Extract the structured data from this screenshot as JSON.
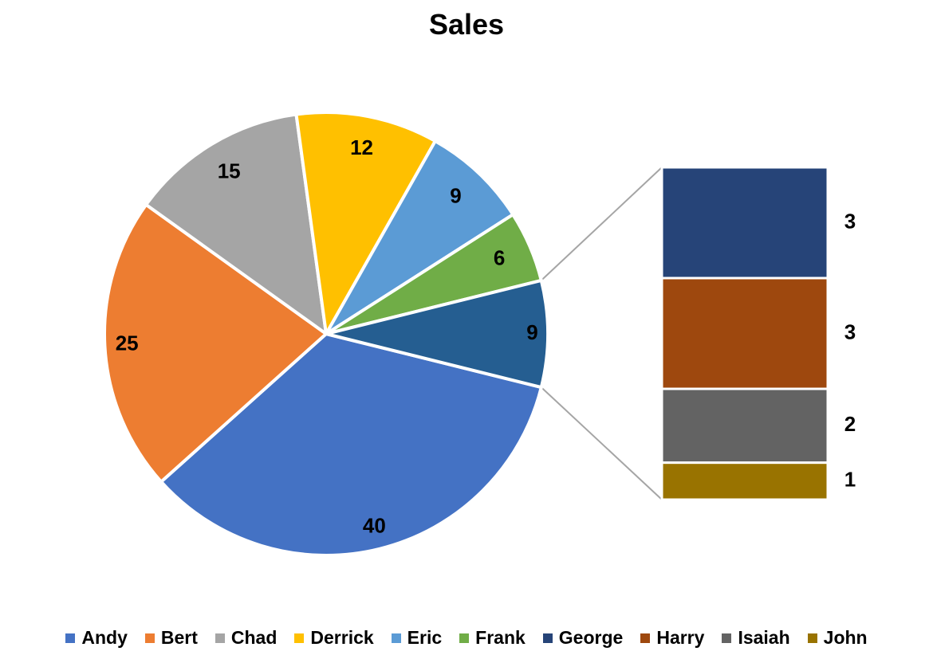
{
  "chart_data": {
    "type": "pie",
    "subtype": "pie-of-pie (bar of pie)",
    "title": "Sales",
    "legend_position": "bottom",
    "categories": [
      "Andy",
      "Bert",
      "Chad",
      "Derrick",
      "Eric",
      "Frank",
      "George",
      "Harry",
      "Isaiah",
      "John"
    ],
    "values": [
      40,
      25,
      15,
      12,
      9,
      6,
      3,
      3,
      2,
      1
    ],
    "colors": [
      "#4472C4",
      "#ED7D31",
      "#A5A5A5",
      "#FFC000",
      "#5B9BD5",
      "#70AD47",
      "#264478",
      "#9E480E",
      "#636363",
      "#997300"
    ],
    "other_slice": {
      "value": 9,
      "color": "#255E91"
    },
    "split_categories": [
      "George",
      "Harry",
      "Isaiah",
      "John"
    ],
    "main_pie_data_labels": [
      "40",
      "25",
      "15",
      "12",
      "9",
      "6",
      "9"
    ],
    "secondary_data_labels": [
      "3",
      "3",
      "2",
      "1"
    ]
  }
}
